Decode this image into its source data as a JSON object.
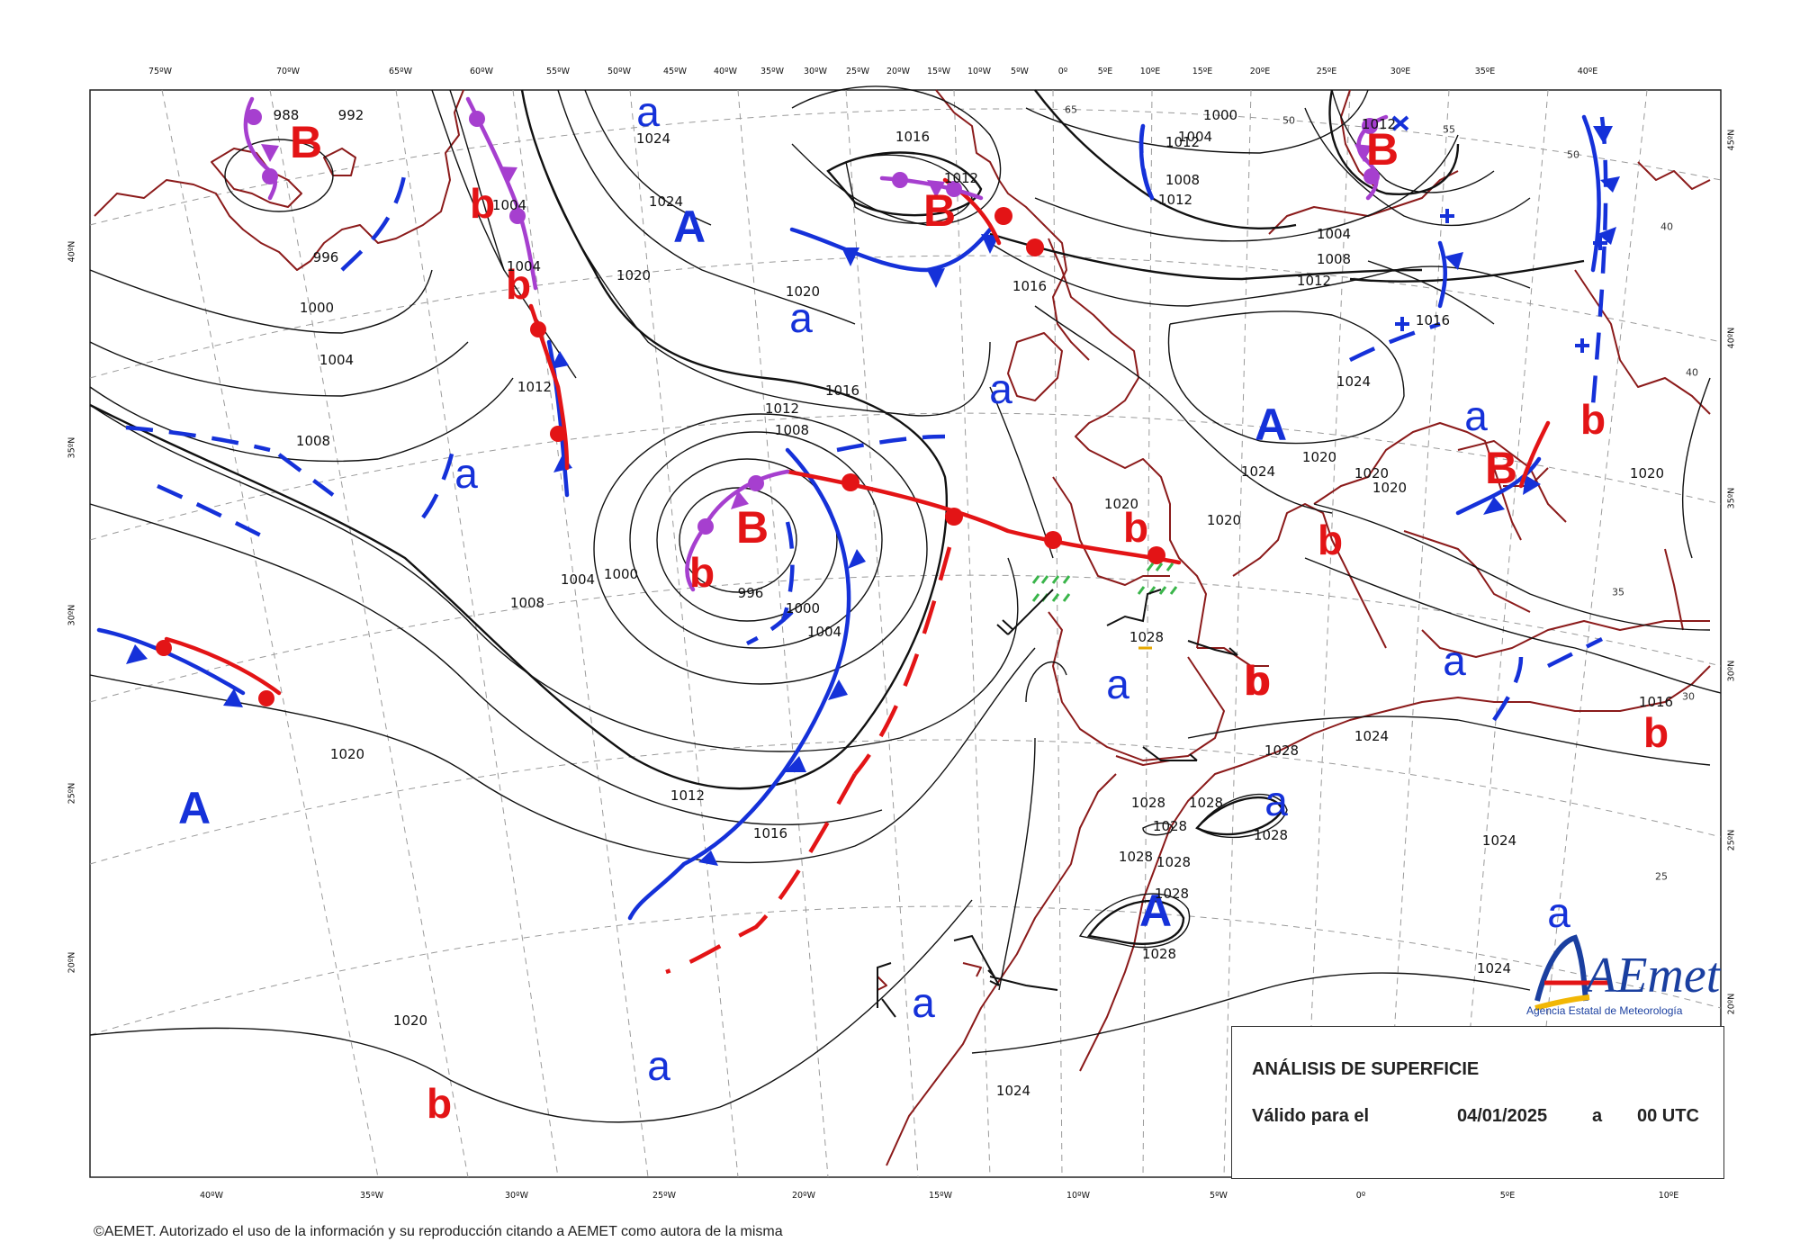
{
  "top_longitudes": [
    "75ºW",
    "70ºW",
    "65ºW",
    "60ºW",
    "55ºW",
    "50ºW",
    "45ºW",
    "40ºW",
    "35ºW",
    "30ºW",
    "25ºW",
    "20ºW",
    "15ºW",
    "10ºW",
    "5ºW",
    "0º",
    "5ºE",
    "10ºE",
    "15ºE",
    "20ºE",
    "25ºE",
    "30ºE",
    "35ºE",
    "40ºE"
  ],
  "bottom_longitudes": [
    "40ºW",
    "35ºW",
    "30ºW",
    "25ºW",
    "20ºW",
    "15ºW",
    "10ºW",
    "5ºW",
    "0º",
    "5ºE",
    "10ºE"
  ],
  "left_latitudes": [
    "40ºN",
    "35ºN",
    "30ºN",
    "25ºN",
    "20ºN"
  ],
  "right_latitudes": [
    "45ºN",
    "40ºN",
    "35ºN",
    "30ºN",
    "25ºN",
    "20ºN"
  ],
  "pressure_centers": [
    {
      "label": "B",
      "kind": "B"
    },
    {
      "label": "b",
      "kind": "b"
    },
    {
      "label": "b",
      "kind": "b"
    },
    {
      "label": "a",
      "kind": "a"
    },
    {
      "label": "A",
      "kind": "A"
    },
    {
      "label": "B",
      "kind": "B"
    },
    {
      "label": "a",
      "kind": "a"
    },
    {
      "label": "B",
      "kind": "B"
    },
    {
      "label": "a",
      "kind": "a"
    },
    {
      "label": "a",
      "kind": "a"
    },
    {
      "label": "B",
      "kind": "B"
    },
    {
      "label": "b",
      "kind": "b"
    },
    {
      "label": "A",
      "kind": "A"
    },
    {
      "label": "b",
      "kind": "b"
    },
    {
      "label": "a",
      "kind": "a"
    },
    {
      "label": "B",
      "kind": "B"
    },
    {
      "label": "b",
      "kind": "b"
    },
    {
      "label": "b",
      "kind": "b"
    },
    {
      "label": "a",
      "kind": "a"
    },
    {
      "label": "b",
      "kind": "b"
    },
    {
      "label": "a",
      "kind": "a"
    },
    {
      "label": "b",
      "kind": "b"
    },
    {
      "label": "A",
      "kind": "A"
    },
    {
      "label": "a",
      "kind": "a"
    },
    {
      "label": "A",
      "kind": "A"
    },
    {
      "label": "a",
      "kind": "a"
    },
    {
      "label": "a",
      "kind": "a"
    },
    {
      "label": "b",
      "kind": "b"
    },
    {
      "label": "b",
      "kind": "b"
    },
    {
      "label": "a",
      "kind": "a"
    }
  ],
  "isobar_labels": [
    "988",
    "992",
    "996",
    "1000",
    "1004",
    "1008",
    "1004",
    "1004",
    "1024",
    "1024",
    "1020",
    "1020",
    "1016",
    "1012",
    "1012",
    "1016",
    "1008",
    "1012",
    "1004",
    "1000",
    "996",
    "1000",
    "1004",
    "1008",
    "1012",
    "1016",
    "1020",
    "1020",
    "1024",
    "1016",
    "1000",
    "1004",
    "1008",
    "1012",
    "1012",
    "1004",
    "1008",
    "1012",
    "1016",
    "1024",
    "1024",
    "1020",
    "1020",
    "1020",
    "1020",
    "1020",
    "1016",
    "1024",
    "1024",
    "1028",
    "1028",
    "1028",
    "1028",
    "1028",
    "1028",
    "1028",
    "1028",
    "1028",
    "1028",
    "1024",
    "1020",
    "1012",
    "65",
    "55",
    "50",
    "50",
    "40",
    "40",
    "35",
    "30",
    "25"
  ],
  "info": {
    "title": "ANÁLISIS DE SUPERFICIE",
    "valid_label": "Válido para el",
    "date": "04/01/2025",
    "at": "a",
    "time": "00 UTC"
  },
  "logo": {
    "brand": "AEmet",
    "agency": "Agencia Estatal de Meteorología"
  },
  "copyright": "©AEMET. Autorizado el uso de la información y su reproducción citando a AEMET como autora de la misma",
  "colors": {
    "high": "#1531d9",
    "low": "#e31416",
    "occluded": "#a63fcf",
    "coast": "#8b1a1a",
    "isobar": "#111111",
    "grid": "#999999",
    "rain": "#39b54a"
  }
}
